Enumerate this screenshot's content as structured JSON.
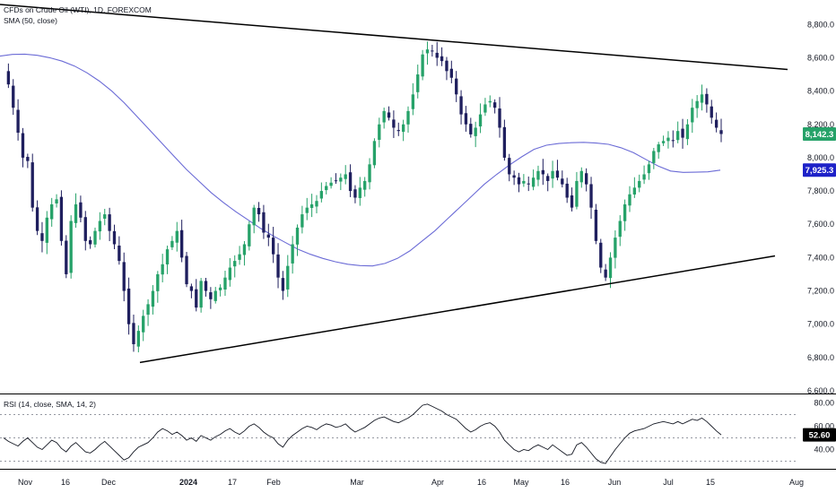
{
  "header": {
    "symbol_line": "CFDs on Crude Oil (WTI), 1D, FOREXCOM",
    "sma_line": "SMA (50, close)"
  },
  "rsi_header": "RSI (14, close, SMA, 14, 2)",
  "colors": {
    "up": "#26a269",
    "down": "#1f1f5e",
    "sma": "#6b6bd6",
    "rsi_line": "#131722",
    "trend": "#000000",
    "last_price_bg": "#26a269",
    "sma_badge_bg": "#1e22c8",
    "rsi_badge_bg": "#000000",
    "separator": "#000000",
    "dotted": "#9598a1"
  },
  "badges": {
    "last_price": "8,142.3",
    "sma_value": "7,925.3",
    "rsi_value": "52.60"
  },
  "chart_data": [
    {
      "type": "candlestick",
      "title": "CFDs on Crude Oil (WTI), 1D, FOREXCOM",
      "y_ticks": [
        "8,800.0",
        "8,600.0",
        "8,400.0",
        "8,200.0",
        "8,000.0",
        "7,800.0",
        "7,600.0",
        "7,400.0",
        "7,200.0",
        "7,000.0",
        "6,800.0",
        "6,600.0"
      ],
      "x_ticks": [
        "Nov",
        "16",
        "Dec",
        "2024",
        "17",
        "Feb",
        "Mar",
        "Apr",
        "16",
        "May",
        "16",
        "Jun",
        "Jul",
        "15",
        "Aug"
      ],
      "ylim": [
        6600,
        8850
      ],
      "close_path": [
        8520,
        8440,
        8300,
        8150,
        8000,
        7980,
        7700,
        7560,
        7500,
        7640,
        7720,
        7750,
        7500,
        7300,
        7620,
        7720,
        7640,
        7500,
        7480,
        7560,
        7620,
        7660,
        7560,
        7480,
        7380,
        7200,
        7000,
        6880,
        6960,
        7050,
        7120,
        7200,
        7300,
        7360,
        7450,
        7500,
        7560,
        7400,
        7240,
        7200,
        7100,
        7260,
        7200,
        7150,
        7200,
        7220,
        7280,
        7340,
        7380,
        7420,
        7480,
        7600,
        7700,
        7660,
        7550,
        7520,
        7420,
        7280,
        7200,
        7350,
        7480,
        7580,
        7660,
        7700,
        7720,
        7740,
        7800,
        7830,
        7850,
        7860,
        7880,
        7900,
        7800,
        7760,
        7820,
        7860,
        7960,
        8100,
        8200,
        8280,
        8240,
        8180,
        8160,
        8200,
        8280,
        8380,
        8500,
        8620,
        8650,
        8640,
        8600,
        8580,
        8520,
        8480,
        8380,
        8260,
        8200,
        8140,
        8180,
        8260,
        8320,
        8340,
        8300,
        8180,
        8000,
        7900,
        7880,
        7840,
        7860,
        7840,
        7880,
        7920,
        7900,
        7860,
        7920,
        7880,
        7840,
        7760,
        7700,
        7860,
        7920,
        7840,
        7700,
        7500,
        7340,
        7280,
        7400,
        7520,
        7620,
        7720,
        7780,
        7820,
        7860,
        7900,
        7960,
        8040,
        8080,
        8100,
        8120,
        8100,
        8160,
        8120,
        8200,
        8300,
        8340,
        8380,
        8320,
        8240,
        8180,
        8142.3
      ],
      "sma": {
        "name": "SMA (50, close)",
        "values": [
          8610,
          8620,
          8622,
          8615,
          8600,
          8580,
          8550,
          8510,
          8460,
          8400,
          8330,
          8250,
          8170,
          8090,
          8010,
          7930,
          7860,
          7790,
          7730,
          7675,
          7625,
          7575,
          7530,
          7490,
          7450,
          7420,
          7395,
          7375,
          7360,
          7352,
          7350,
          7365,
          7395,
          7440,
          7500,
          7560,
          7630,
          7700,
          7770,
          7840,
          7900,
          7955,
          8005,
          8050,
          8075,
          8085,
          8090,
          8092,
          8088,
          8080,
          8060,
          8030,
          7990,
          7950,
          7920,
          7912,
          7913,
          7915,
          7925.3
        ]
      },
      "upper_trendline": {
        "from": [
          "Oct",
          8920
        ],
        "to": [
          "Jul",
          8530
        ]
      },
      "lower_trendline": {
        "from": [
          "Dec",
          6770
        ],
        "to": [
          "Jul",
          7410
        ]
      }
    },
    {
      "type": "line",
      "title": "RSI (14, close, SMA, 14, 2)",
      "y_ticks": [
        "80.00",
        "60.00",
        "40.00"
      ],
      "levels": [
        70,
        50,
        30
      ],
      "ylim": [
        25,
        85
      ],
      "values": [
        50,
        47,
        45,
        43,
        47,
        50,
        46,
        42,
        40,
        44,
        48,
        46,
        41,
        38,
        43,
        46,
        42,
        38,
        37,
        40,
        44,
        47,
        43,
        39,
        35,
        31,
        33,
        38,
        42,
        44,
        46,
        50,
        55,
        58,
        56,
        53,
        55,
        52,
        48,
        50,
        47,
        52,
        50,
        48,
        51,
        53,
        56,
        58,
        55,
        53,
        56,
        60,
        62,
        59,
        55,
        52,
        50,
        45,
        42,
        48,
        52,
        55,
        58,
        60,
        59,
        57,
        60,
        62,
        61,
        59,
        60,
        62,
        58,
        55,
        57,
        59,
        62,
        65,
        67,
        68,
        66,
        64,
        63,
        65,
        67,
        70,
        74,
        78,
        79,
        77,
        75,
        73,
        70,
        68,
        66,
        62,
        58,
        55,
        57,
        60,
        62,
        63,
        60,
        55,
        48,
        44,
        40,
        38,
        40,
        39,
        42,
        44,
        42,
        40,
        44,
        41,
        38,
        35,
        36,
        44,
        46,
        42,
        37,
        32,
        29,
        28,
        34,
        40,
        45,
        50,
        54,
        56,
        57,
        58,
        60,
        62,
        63,
        64,
        63,
        62,
        64,
        62,
        64,
        66,
        65,
        67,
        64,
        60,
        56,
        52.6
      ]
    }
  ]
}
